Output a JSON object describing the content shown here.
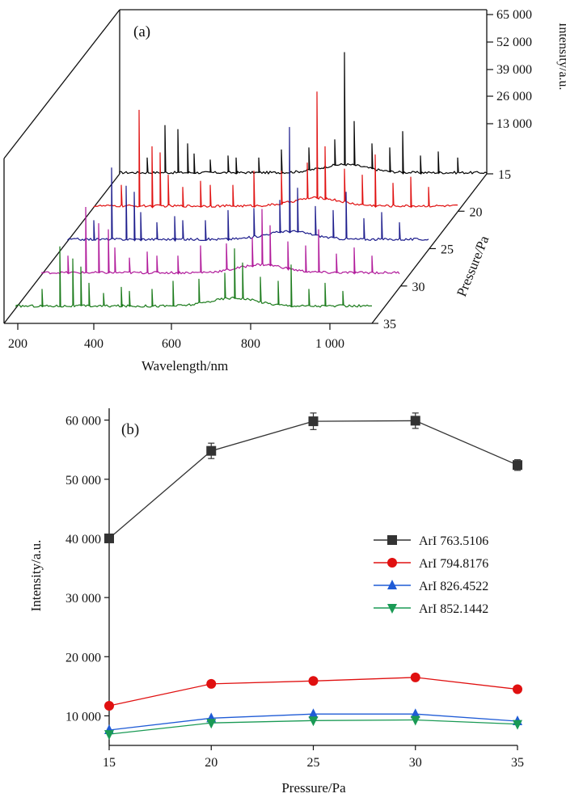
{
  "chart_data": [
    {
      "type": "line",
      "panel_label": "(a)",
      "xlabel": "Wavelength/nm",
      "ylabel": "Intensity/a.u.",
      "zlabel": "Pressure/Pa",
      "x_ticks": [
        "200",
        "400",
        "600",
        "800",
        "1 000"
      ],
      "y_ticks": [
        "13 000",
        "26 000",
        "39 000",
        "52 000",
        "65 000"
      ],
      "z_ticks": [
        "15",
        "20",
        "25",
        "30",
        "35"
      ],
      "series": [
        {
          "pressure": 35,
          "color": "#1a7a1a",
          "peaks": [
            [
              260,
              9000
            ],
            [
              300,
              30000
            ],
            [
              330,
              24000
            ],
            [
              350,
              20000
            ],
            [
              366,
              12000
            ],
            [
              400,
              7000
            ],
            [
              440,
              10000
            ],
            [
              460,
              8000
            ],
            [
              510,
              9000
            ],
            [
              560,
              13000
            ],
            [
              620,
              14000
            ],
            [
              680,
              17000
            ],
            [
              700,
              29000
            ],
            [
              720,
              22000
            ],
            [
              760,
              15000
            ],
            [
              800,
              13000
            ],
            [
              830,
              21000
            ],
            [
              870,
              9000
            ],
            [
              910,
              12000
            ],
            [
              950,
              8000
            ]
          ]
        },
        {
          "pressure": 30,
          "color": "#b0199a",
          "peaks": [
            [
              260,
              9000
            ],
            [
              300,
              33000
            ],
            [
              330,
              25000
            ],
            [
              350,
              22000
            ],
            [
              366,
              13000
            ],
            [
              400,
              8000
            ],
            [
              440,
              11000
            ],
            [
              460,
              9000
            ],
            [
              510,
              9000
            ],
            [
              560,
              14000
            ],
            [
              620,
              15000
            ],
            [
              680,
              18000
            ],
            [
              700,
              32000
            ],
            [
              720,
              24000
            ],
            [
              760,
              16000
            ],
            [
              800,
              14000
            ],
            [
              830,
              22000
            ],
            [
              870,
              10000
            ],
            [
              910,
              13000
            ],
            [
              950,
              9000
            ]
          ]
        },
        {
          "pressure": 25,
          "color": "#1c1c8c",
          "peaks": [
            [
              260,
              10000
            ],
            [
              300,
              36000
            ],
            [
              330,
              27000
            ],
            [
              350,
              24000
            ],
            [
              366,
              14000
            ],
            [
              400,
              9000
            ],
            [
              440,
              12000
            ],
            [
              460,
              10000
            ],
            [
              510,
              10000
            ],
            [
              560,
              15000
            ],
            [
              620,
              16000
            ],
            [
              680,
              20000
            ],
            [
              700,
              56000
            ],
            [
              720,
              26000
            ],
            [
              760,
              17000
            ],
            [
              800,
              15000
            ],
            [
              830,
              24000
            ],
            [
              870,
              11000
            ],
            [
              910,
              14000
            ],
            [
              950,
              9000
            ]
          ]
        },
        {
          "pressure": 20,
          "color": "#e01010",
          "peaks": [
            [
              260,
              11000
            ],
            [
              300,
              48000
            ],
            [
              330,
              30000
            ],
            [
              350,
              27000
            ],
            [
              366,
              16000
            ],
            [
              400,
              10000
            ],
            [
              440,
              13000
            ],
            [
              460,
              11000
            ],
            [
              510,
              11000
            ],
            [
              560,
              18000
            ],
            [
              620,
              18000
            ],
            [
              680,
              22000
            ],
            [
              700,
              57000
            ],
            [
              720,
              30000
            ],
            [
              760,
              19000
            ],
            [
              800,
              16000
            ],
            [
              830,
              26000
            ],
            [
              870,
              12000
            ],
            [
              910,
              15000
            ],
            [
              950,
              10000
            ]
          ]
        },
        {
          "pressure": 15,
          "color": "#000000",
          "peaks": [
            [
              260,
              8000
            ],
            [
              300,
              24000
            ],
            [
              330,
              22000
            ],
            [
              350,
              15000
            ],
            [
              366,
              10000
            ],
            [
              400,
              7000
            ],
            [
              440,
              9000
            ],
            [
              460,
              8000
            ],
            [
              510,
              8000
            ],
            [
              560,
              12000
            ],
            [
              620,
              13000
            ],
            [
              680,
              17000
            ],
            [
              700,
              60000
            ],
            [
              720,
              26000
            ],
            [
              760,
              15000
            ],
            [
              800,
              13000
            ],
            [
              830,
              21000
            ],
            [
              870,
              9000
            ],
            [
              910,
              11000
            ],
            [
              950,
              8000
            ]
          ]
        }
      ]
    },
    {
      "type": "line",
      "panel_label": "(b)",
      "xlabel": "Pressure/Pa",
      "ylabel": "Intensity/a.u.",
      "x": [
        15,
        20,
        25,
        30,
        35
      ],
      "xlim": [
        15,
        35
      ],
      "ylim": [
        5000,
        62000
      ],
      "x_ticks": [
        "15",
        "20",
        "25",
        "30",
        "35"
      ],
      "y_ticks": [
        {
          "value": 10000,
          "label": "10 000"
        },
        {
          "value": 20000,
          "label": "20 000"
        },
        {
          "value": 30000,
          "label": "30 000"
        },
        {
          "value": 40000,
          "label": "40 000"
        },
        {
          "value": 50000,
          "label": "50 000"
        },
        {
          "value": 60000,
          "label": "60 000"
        }
      ],
      "legend_position": "right",
      "series": [
        {
          "name": "ArI 763.5106",
          "color": "#333333",
          "marker": "square",
          "values": [
            40000,
            54800,
            59800,
            59900,
            52400
          ],
          "errors": [
            600,
            1300,
            1400,
            1300,
            900
          ]
        },
        {
          "name": "ArI 794.8176",
          "color": "#e01010",
          "marker": "circle",
          "values": [
            11700,
            15400,
            15900,
            16500,
            14500
          ],
          "errors": [
            0,
            0,
            0,
            0,
            0
          ]
        },
        {
          "name": "ArI 826.4522",
          "color": "#1f5bd6",
          "marker": "triangle-up",
          "values": [
            7600,
            9600,
            10300,
            10300,
            9100
          ],
          "errors": [
            0,
            0,
            0,
            0,
            0
          ]
        },
        {
          "name": "ArI 852.1442",
          "color": "#1a9a55",
          "marker": "triangle-down",
          "values": [
            6900,
            8800,
            9200,
            9300,
            8600
          ],
          "errors": [
            0,
            0,
            0,
            0,
            0
          ]
        }
      ]
    }
  ]
}
